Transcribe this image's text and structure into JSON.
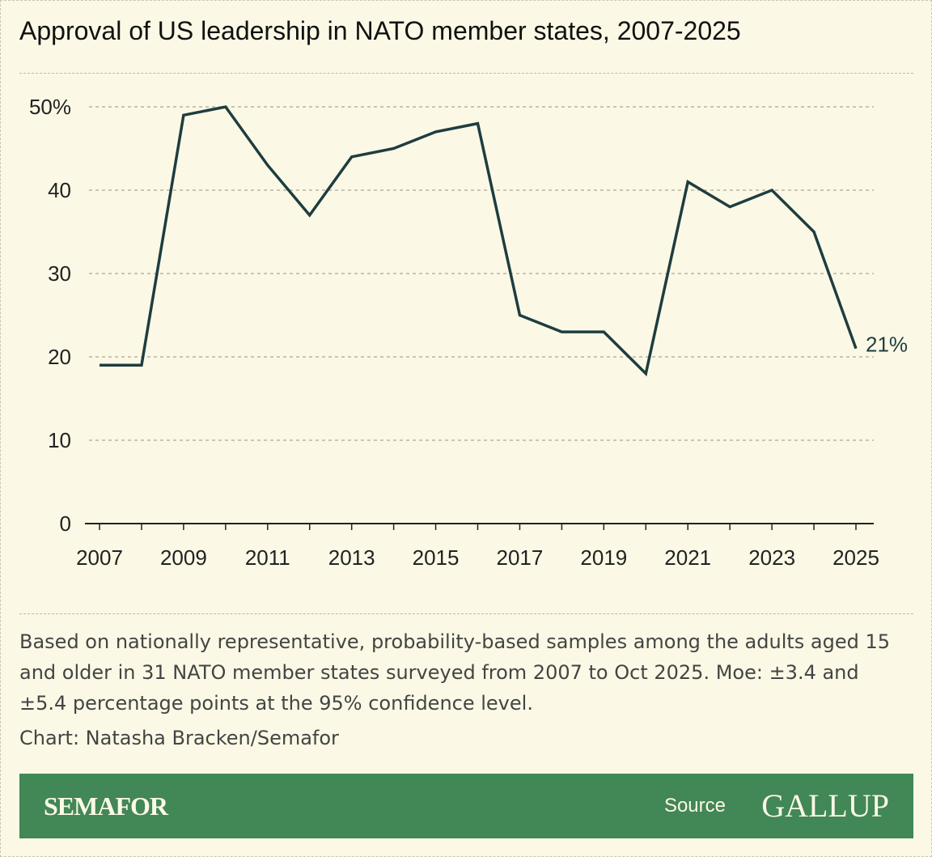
{
  "chart_data": {
    "type": "line",
    "title": "Approval of US leadership in NATO member states, 2007-2025",
    "x": [
      2007,
      2008,
      2009,
      2010,
      2011,
      2012,
      2013,
      2014,
      2015,
      2016,
      2017,
      2018,
      2019,
      2020,
      2021,
      2022,
      2023,
      2024,
      2025
    ],
    "values": [
      19,
      19,
      49,
      50,
      43,
      37,
      44,
      45,
      47,
      48,
      25,
      23,
      23,
      18,
      41,
      38,
      40,
      35,
      21
    ],
    "xticks": [
      "2007",
      "2009",
      "2011",
      "2013",
      "2015",
      "2017",
      "2019",
      "2021",
      "2023",
      "2025"
    ],
    "yticks": [
      "0",
      "10",
      "20",
      "30",
      "40",
      "50%"
    ],
    "ylim": [
      0,
      50
    ],
    "xlim": [
      2007,
      2025
    ],
    "grid": true,
    "end_label": "21%",
    "line_color": "#1f3d40"
  },
  "note": "Based on nationally representative, probability-based samples among the adults aged 15 and older in 31 NATO member states surveyed from 2007 to Oct 2025. Moe: ±3.4 and ±5.4 percentage points at the 95% confidence level.",
  "credit": "Chart: Natasha Bracken/Semafor",
  "footer": {
    "brand": "SEMAFOR",
    "source_label": "Source",
    "source_name": "GALLUP",
    "color": "#428756"
  }
}
